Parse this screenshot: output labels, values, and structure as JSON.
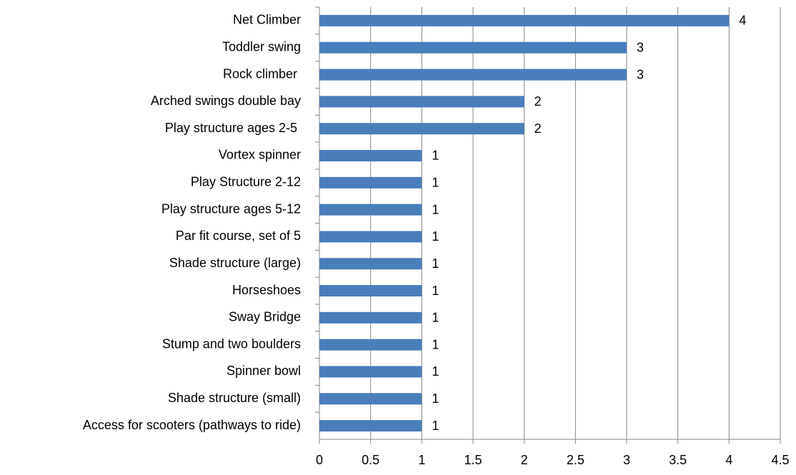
{
  "chart_data": {
    "type": "bar",
    "orientation": "horizontal",
    "categories": [
      "Net Climber",
      "Toddler swing",
      "Rock climber ",
      "Arched swings double bay",
      "Play structure ages 2-5 ",
      "Vortex spinner",
      "Play Structure 2-12",
      "Play structure ages 5-12",
      "Par fit course, set of 5",
      "Shade structure (large)",
      "Horseshoes",
      "Sway Bridge",
      "Stump and two boulders",
      "Spinner bowl",
      "Shade structure (small)",
      "Access for scooters (pathways to ride)"
    ],
    "values": [
      4,
      3,
      3,
      2,
      2,
      1,
      1,
      1,
      1,
      1,
      1,
      1,
      1,
      1,
      1,
      1
    ],
    "color": "#4a7ebb",
    "xlim": [
      0,
      4.5
    ],
    "xticks": [
      0,
      0.5,
      1,
      1.5,
      2,
      2.5,
      3,
      3.5,
      4,
      4.5
    ],
    "grid": true
  }
}
